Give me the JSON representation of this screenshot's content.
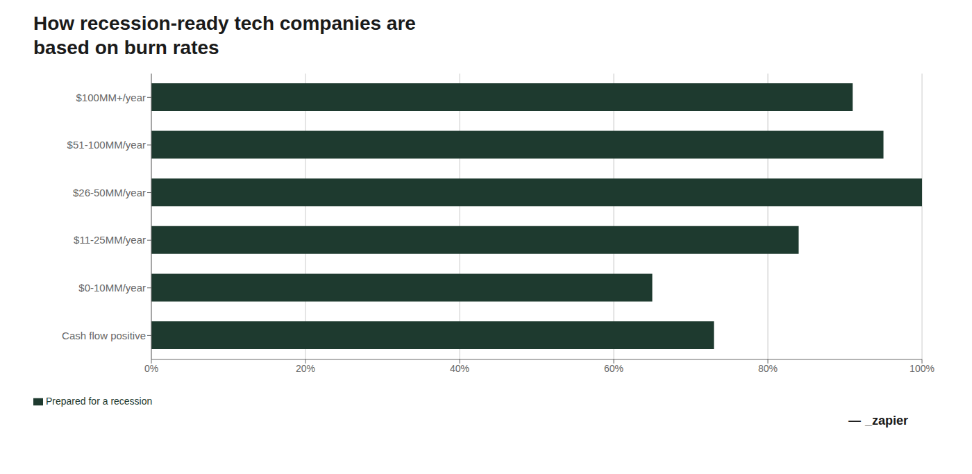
{
  "chart_data": {
    "type": "bar",
    "orientation": "horizontal",
    "title": "How recession-ready tech companies are\nbased on burn rates",
    "categories": [
      "$100MM+/year",
      "$51-100MM/year",
      "$26-50MM/year",
      "$11-25MM/year",
      "$0-10MM/year",
      "Cash flow positive"
    ],
    "series": [
      {
        "name": "Prepared for a recession",
        "color": "#1e3a2f",
        "values": [
          91,
          95,
          100,
          84,
          65,
          73
        ]
      }
    ],
    "xlim": [
      0,
      100
    ],
    "xticks": [
      {
        "value": 0,
        "label": "0%"
      },
      {
        "value": 20,
        "label": "20%"
      },
      {
        "value": 40,
        "label": "40%"
      },
      {
        "value": 60,
        "label": "60%"
      },
      {
        "value": 80,
        "label": "80%"
      },
      {
        "value": 100,
        "label": "100%"
      }
    ],
    "grid": true,
    "legend": "lower left",
    "annotations": [
      "—",
      "_zapier"
    ]
  }
}
